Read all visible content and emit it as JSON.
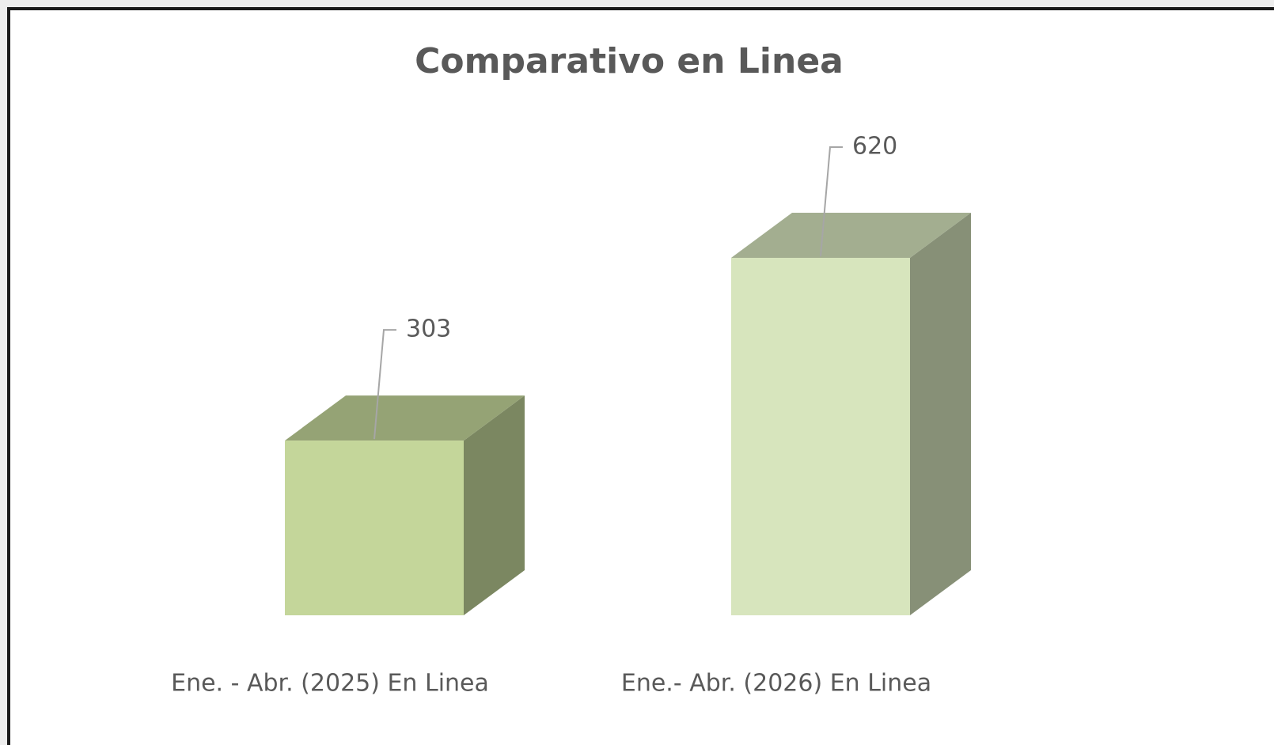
{
  "chart_data": {
    "type": "bar3d",
    "title": "Comparativo en Linea",
    "categories": [
      "Ene. - Abr. (2025) En Linea",
      "Ene.- Abr. (2026) En Linea"
    ],
    "values": [
      303,
      620
    ],
    "colors": [
      "#c4d69a",
      "#d7e5bd"
    ]
  }
}
